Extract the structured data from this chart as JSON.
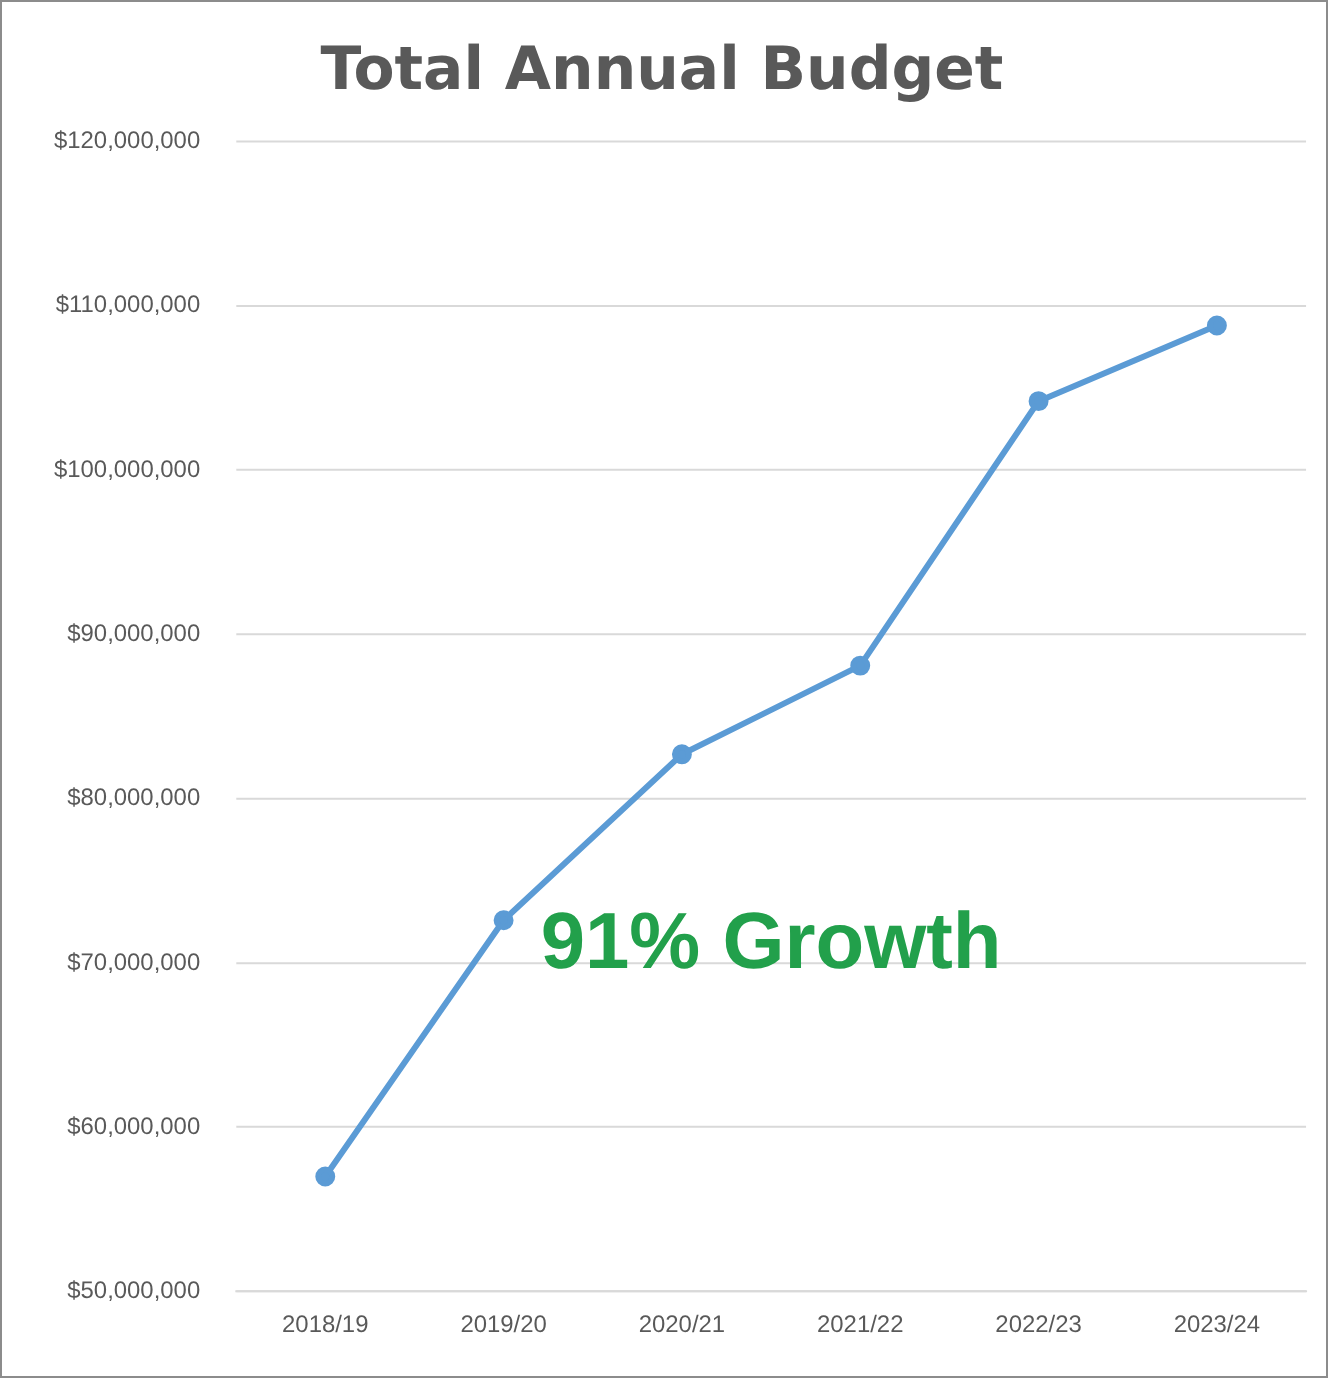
{
  "chart_data": {
    "type": "line",
    "title": "Total Annual Budget",
    "categories": [
      "2018/19",
      "2019/20",
      "2020/21",
      "2021/22",
      "2022/23",
      "2023/24"
    ],
    "series": [
      {
        "color": "#5b9bd5",
        "values": [
          57000000,
          72600000,
          82700000,
          88100000,
          104200000,
          108800000
        ]
      }
    ],
    "ylim": [
      50000000,
      120000000
    ],
    "yticks": [
      {
        "value": 50000000,
        "label": "$50,000,000"
      },
      {
        "value": 60000000,
        "label": "$60,000,000"
      },
      {
        "value": 70000000,
        "label": "$70,000,000"
      },
      {
        "value": 80000000,
        "label": "$80,000,000"
      },
      {
        "value": 90000000,
        "label": "$90,000,000"
      },
      {
        "value": 100000000,
        "label": "$100,000,000"
      },
      {
        "value": 110000000,
        "label": "$110,000,000"
      },
      {
        "value": 120000000,
        "label": "$120,000,000"
      }
    ],
    "grid": "y",
    "legend": false,
    "marker": "circle",
    "line_style": "solid",
    "annotations": [
      "91% Growth"
    ]
  }
}
